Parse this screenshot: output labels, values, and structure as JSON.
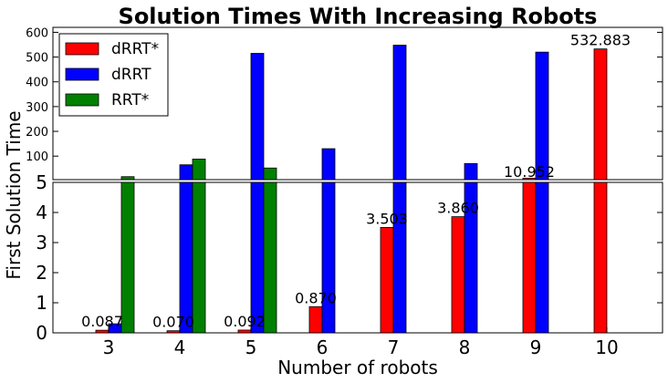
{
  "chart_data": {
    "type": "bar",
    "title": "Solution Times With Increasing Robots",
    "xlabel": "Number of robots",
    "ylabel": "First Solution Time",
    "categories": [
      "3",
      "4",
      "5",
      "6",
      "7",
      "8",
      "9",
      "10"
    ],
    "series": [
      {
        "name": "dRRT*",
        "color": "#ff0000",
        "values": [
          0.087,
          0.07,
          0.092,
          0.87,
          3.503,
          3.86,
          10.952,
          532.883
        ]
      },
      {
        "name": "dRRT",
        "color": "#0000ff",
        "values": [
          0.3,
          65,
          515,
          130,
          548,
          70,
          520,
          null
        ]
      },
      {
        "name": "RRT*",
        "color": "#008000",
        "values": [
          17,
          88,
          52,
          null,
          null,
          null,
          null,
          null
        ]
      }
    ],
    "data_labels": [
      "0.087",
      "0.070",
      "0.092",
      "0.870",
      "3.503",
      "3.860",
      "10.952",
      "532.883"
    ],
    "axes": {
      "lower": {
        "ylim": [
          0,
          5
        ],
        "yticks": [
          "0",
          "1",
          "2",
          "3",
          "4",
          "5"
        ]
      },
      "upper": {
        "ylim": [
          5,
          620
        ],
        "yticks": [
          "100",
          "200",
          "300",
          "400",
          "500",
          "600"
        ]
      }
    },
    "legend": "top-left",
    "grid": false
  }
}
